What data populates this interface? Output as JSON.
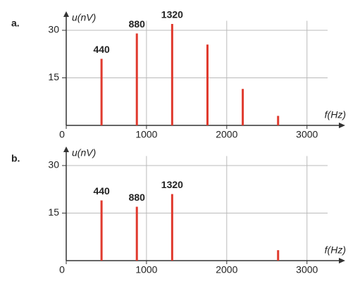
{
  "chart_data": [
    {
      "type": "bar",
      "panel_label": "a.",
      "y_label": "u(nV)",
      "x_label": "f(Hz)",
      "x": [
        440,
        880,
        1320,
        1760,
        2200,
        2640
      ],
      "values": [
        21,
        29,
        32,
        25.5,
        11.5,
        3
      ],
      "labeled_bars": 3,
      "color": "#e03a2e",
      "xlim": [
        0,
        3450
      ],
      "xticks": [
        0,
        1000,
        2000,
        3000
      ],
      "ylim": [
        0,
        33
      ],
      "yticks": [
        15,
        30
      ],
      "grid": true
    },
    {
      "type": "bar",
      "panel_label": "b.",
      "y_label": "u(nV)",
      "x_label": "f(Hz)",
      "x": [
        440,
        880,
        1320,
        2640
      ],
      "values": [
        19,
        17,
        21,
        3.3
      ],
      "labeled_bars": 3,
      "color": "#e03a2e",
      "xlim": [
        0,
        3450
      ],
      "xticks": [
        0,
        1000,
        2000,
        3000
      ],
      "ylim": [
        0,
        33
      ],
      "yticks": [
        15,
        30
      ],
      "grid": true
    }
  ]
}
